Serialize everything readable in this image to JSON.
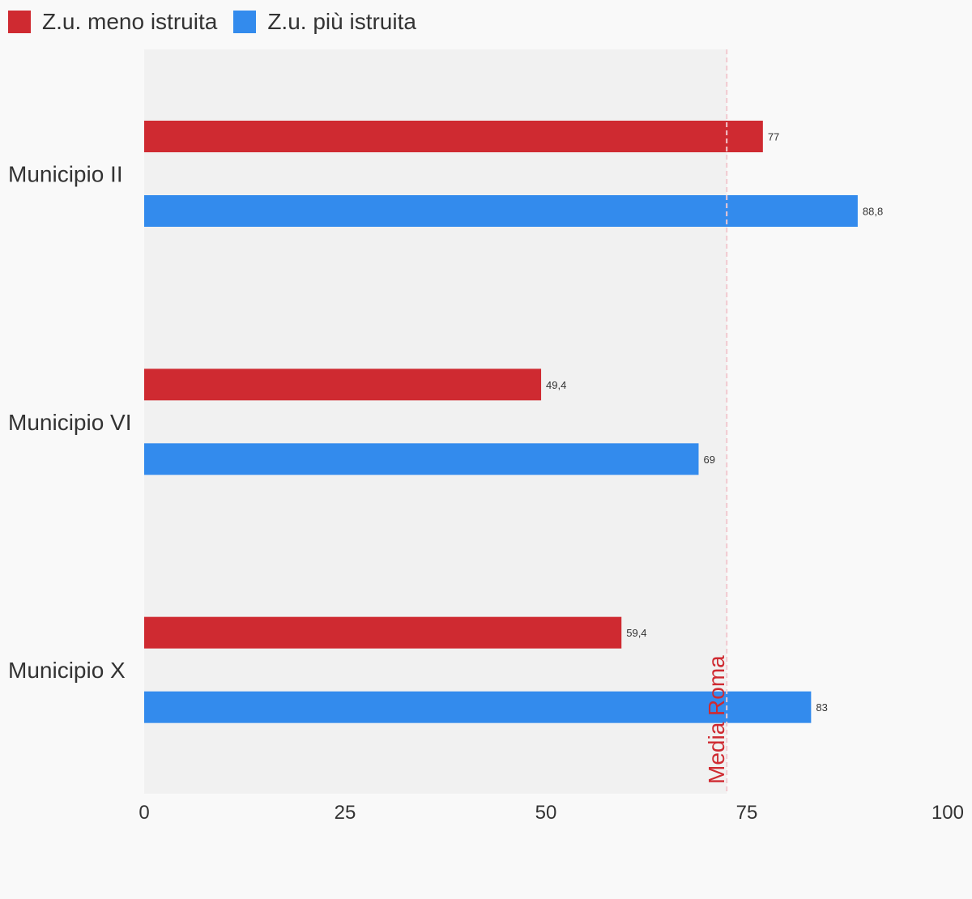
{
  "chart_data": {
    "type": "bar",
    "orientation": "horizontal",
    "categories": [
      "Municipio II",
      "Municipio VI",
      "Municipio X"
    ],
    "series": [
      {
        "name": "Z.u. meno istruita",
        "color": "#cf2a31",
        "values": [
          77,
          49.4,
          59.4
        ],
        "labels": [
          "77",
          "49,4",
          "59,4"
        ]
      },
      {
        "name": "Z.u. più istruita",
        "color": "#338bed",
        "values": [
          88.8,
          69,
          83
        ],
        "labels": [
          "88,8",
          "69",
          "83"
        ]
      }
    ],
    "xlim": [
      0,
      100
    ],
    "xticks": [
      0,
      25,
      50,
      75,
      100
    ],
    "reference_line": {
      "value": 72.5,
      "label": "Media Roma",
      "color": "#cf2a31"
    },
    "legend_position": "top-left",
    "grid": false,
    "plot_background": "#f1f1f1",
    "page_background": "#f9f9f9"
  }
}
